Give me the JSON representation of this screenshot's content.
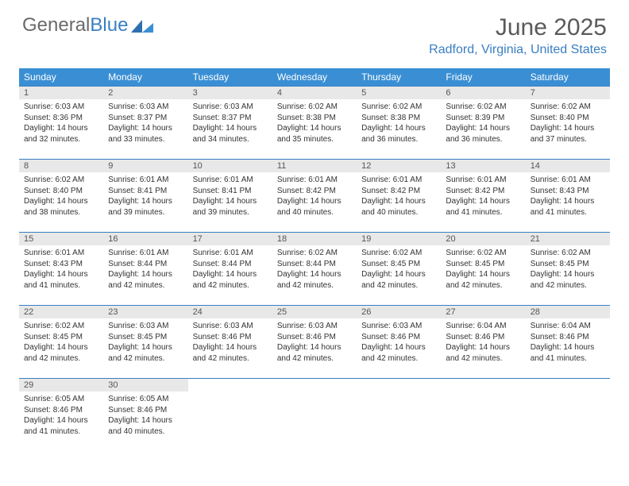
{
  "logo": {
    "text1": "General",
    "text2": "Blue"
  },
  "title": "June 2025",
  "location": "Radford, Virginia, United States",
  "colors": {
    "header_bg": "#3a8fd4",
    "accent": "#3a7fc2",
    "daynum_bg": "#e8e8e8",
    "text": "#333333",
    "title_text": "#5a5a5a",
    "logo_gray": "#6a6a6a"
  },
  "weekdays": [
    "Sunday",
    "Monday",
    "Tuesday",
    "Wednesday",
    "Thursday",
    "Friday",
    "Saturday"
  ],
  "weeks": [
    [
      {
        "n": "1",
        "sunrise": "6:03 AM",
        "sunset": "8:36 PM",
        "dl": "14 hours and 32 minutes."
      },
      {
        "n": "2",
        "sunrise": "6:03 AM",
        "sunset": "8:37 PM",
        "dl": "14 hours and 33 minutes."
      },
      {
        "n": "3",
        "sunrise": "6:03 AM",
        "sunset": "8:37 PM",
        "dl": "14 hours and 34 minutes."
      },
      {
        "n": "4",
        "sunrise": "6:02 AM",
        "sunset": "8:38 PM",
        "dl": "14 hours and 35 minutes."
      },
      {
        "n": "5",
        "sunrise": "6:02 AM",
        "sunset": "8:38 PM",
        "dl": "14 hours and 36 minutes."
      },
      {
        "n": "6",
        "sunrise": "6:02 AM",
        "sunset": "8:39 PM",
        "dl": "14 hours and 36 minutes."
      },
      {
        "n": "7",
        "sunrise": "6:02 AM",
        "sunset": "8:40 PM",
        "dl": "14 hours and 37 minutes."
      }
    ],
    [
      {
        "n": "8",
        "sunrise": "6:02 AM",
        "sunset": "8:40 PM",
        "dl": "14 hours and 38 minutes."
      },
      {
        "n": "9",
        "sunrise": "6:01 AM",
        "sunset": "8:41 PM",
        "dl": "14 hours and 39 minutes."
      },
      {
        "n": "10",
        "sunrise": "6:01 AM",
        "sunset": "8:41 PM",
        "dl": "14 hours and 39 minutes."
      },
      {
        "n": "11",
        "sunrise": "6:01 AM",
        "sunset": "8:42 PM",
        "dl": "14 hours and 40 minutes."
      },
      {
        "n": "12",
        "sunrise": "6:01 AM",
        "sunset": "8:42 PM",
        "dl": "14 hours and 40 minutes."
      },
      {
        "n": "13",
        "sunrise": "6:01 AM",
        "sunset": "8:42 PM",
        "dl": "14 hours and 41 minutes."
      },
      {
        "n": "14",
        "sunrise": "6:01 AM",
        "sunset": "8:43 PM",
        "dl": "14 hours and 41 minutes."
      }
    ],
    [
      {
        "n": "15",
        "sunrise": "6:01 AM",
        "sunset": "8:43 PM",
        "dl": "14 hours and 41 minutes."
      },
      {
        "n": "16",
        "sunrise": "6:01 AM",
        "sunset": "8:44 PM",
        "dl": "14 hours and 42 minutes."
      },
      {
        "n": "17",
        "sunrise": "6:01 AM",
        "sunset": "8:44 PM",
        "dl": "14 hours and 42 minutes."
      },
      {
        "n": "18",
        "sunrise": "6:02 AM",
        "sunset": "8:44 PM",
        "dl": "14 hours and 42 minutes."
      },
      {
        "n": "19",
        "sunrise": "6:02 AM",
        "sunset": "8:45 PM",
        "dl": "14 hours and 42 minutes."
      },
      {
        "n": "20",
        "sunrise": "6:02 AM",
        "sunset": "8:45 PM",
        "dl": "14 hours and 42 minutes."
      },
      {
        "n": "21",
        "sunrise": "6:02 AM",
        "sunset": "8:45 PM",
        "dl": "14 hours and 42 minutes."
      }
    ],
    [
      {
        "n": "22",
        "sunrise": "6:02 AM",
        "sunset": "8:45 PM",
        "dl": "14 hours and 42 minutes."
      },
      {
        "n": "23",
        "sunrise": "6:03 AM",
        "sunset": "8:45 PM",
        "dl": "14 hours and 42 minutes."
      },
      {
        "n": "24",
        "sunrise": "6:03 AM",
        "sunset": "8:46 PM",
        "dl": "14 hours and 42 minutes."
      },
      {
        "n": "25",
        "sunrise": "6:03 AM",
        "sunset": "8:46 PM",
        "dl": "14 hours and 42 minutes."
      },
      {
        "n": "26",
        "sunrise": "6:03 AM",
        "sunset": "8:46 PM",
        "dl": "14 hours and 42 minutes."
      },
      {
        "n": "27",
        "sunrise": "6:04 AM",
        "sunset": "8:46 PM",
        "dl": "14 hours and 42 minutes."
      },
      {
        "n": "28",
        "sunrise": "6:04 AM",
        "sunset": "8:46 PM",
        "dl": "14 hours and 41 minutes."
      }
    ],
    [
      {
        "n": "29",
        "sunrise": "6:05 AM",
        "sunset": "8:46 PM",
        "dl": "14 hours and 41 minutes."
      },
      {
        "n": "30",
        "sunrise": "6:05 AM",
        "sunset": "8:46 PM",
        "dl": "14 hours and 40 minutes."
      },
      null,
      null,
      null,
      null,
      null
    ]
  ],
  "labels": {
    "sunrise": "Sunrise:",
    "sunset": "Sunset:",
    "daylight": "Daylight:"
  }
}
